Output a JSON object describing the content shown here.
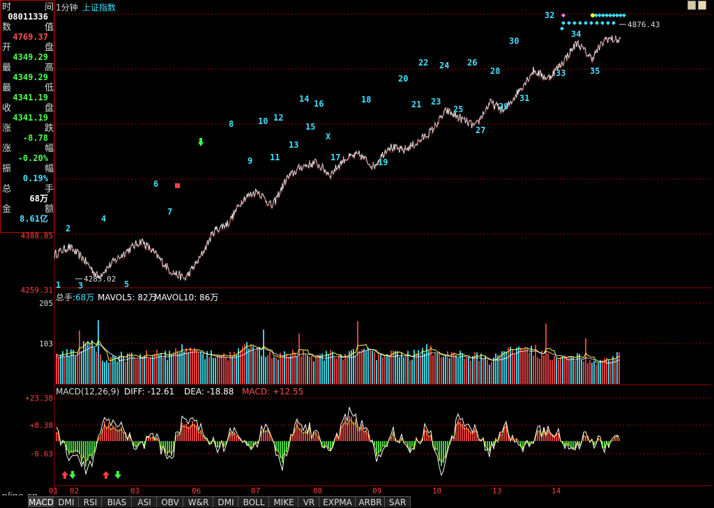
{
  "info_panel": {
    "rows": [
      {
        "label": "时",
        "label2": "间",
        "value": "08011336",
        "color": "#ffffff"
      },
      {
        "label": "数",
        "label2": "值",
        "value": "4769.37",
        "color": "#ff5050"
      },
      {
        "label": "开",
        "label2": "盘",
        "value": "4349.29",
        "color": "#50ff50"
      },
      {
        "label": "最",
        "label2": "高",
        "value": "4349.29",
        "color": "#50ff50"
      },
      {
        "label": "最",
        "label2": "低",
        "value": "4341.19",
        "color": "#50ff50"
      },
      {
        "label": "收",
        "label2": "盘",
        "value": "4341.19",
        "color": "#50ff50"
      },
      {
        "label": "涨",
        "label2": "跌",
        "value": "-8.78",
        "color": "#50ff50"
      },
      {
        "label": "涨",
        "label2": "幅",
        "value": "-0.20%",
        "color": "#50ff50"
      },
      {
        "label": "振",
        "label2": "幅",
        "value": "0.19%",
        "color": "#50e0ff"
      },
      {
        "label": "总",
        "label2": "手",
        "value": "68万",
        "color": "#ffffff"
      },
      {
        "label": "金",
        "label2": "额",
        "value": "8.61亿",
        "color": "#50e0ff"
      }
    ]
  },
  "price_header": {
    "period": "1分钟",
    "name": "上证指数"
  },
  "volume_header": {
    "label": "总手:",
    "value": "68万",
    "mavol5": "MAVOL5: 82万",
    "mavol10": "MAVOL10: 86万"
  },
  "macd_header": {
    "name": "MACD(12,26,9)",
    "diff": "DIFF: -12.61",
    "dea": "DEA: -18.88",
    "macd": "MACD: +12.55"
  },
  "price_axis": {
    "labels": [
      "4388.85",
      "4259.31"
    ],
    "ylim": [
      4259.31,
      4950
    ]
  },
  "volume_axis": {
    "labels": [
      "205",
      "103"
    ]
  },
  "macd_axis": {
    "labels": [
      "+23.38",
      "+8.38",
      "-6.63"
    ]
  },
  "price_markers": {
    "low_label": "4285.02",
    "last_label": "4876.43",
    "x_label": "X",
    "wave_labels": [
      "1",
      "2",
      "3",
      "4",
      "5",
      "6",
      "7",
      "8",
      "9",
      "10",
      "11",
      "12",
      "13",
      "14",
      "15",
      "16",
      "17",
      "18",
      "19",
      "20",
      "21",
      "22",
      "23",
      "24",
      "25",
      "26",
      "27",
      "28",
      "29",
      "30",
      "31",
      "32",
      "33",
      "34",
      "35"
    ]
  },
  "x_axis": {
    "labels": [
      "01",
      "02",
      "03",
      "06",
      "07",
      "08",
      "09",
      "10",
      "13",
      "14"
    ]
  },
  "tabs": [
    "MACD",
    "DMI",
    "RSI",
    "BIAS",
    "ASI",
    "OBV",
    "W&R",
    "DMI",
    "BOLL",
    "MIKE",
    "VR",
    "EXPMA",
    "ARBR",
    "SAR"
  ],
  "watermark": "nline.cn",
  "colors": {
    "up": "#ff4040",
    "down": "#40ff40",
    "cyan": "#40e0ff",
    "grid": "#a00000",
    "text": "#dddddd"
  },
  "chart_data": [
    {
      "type": "line",
      "title": "上证指数 1分钟",
      "description_series": "index price",
      "ylim": [
        4259.31,
        4950
      ],
      "series": [
        {
          "values": [
            4340,
            4360,
            4330,
            4285,
            4320,
            4350,
            4375,
            4340,
            4300,
            4280,
            4330,
            4400,
            4420,
            4480,
            4500,
            4460,
            4530,
            4560,
            4570,
            4540,
            4580,
            4590,
            4560,
            4610,
            4600,
            4620,
            4650,
            4700,
            4680,
            4660,
            4720,
            4700,
            4750,
            4800,
            4780,
            4820,
            4870,
            4830,
            4880,
            4876
          ]
        }
      ]
    },
    {
      "type": "bar",
      "title": "总手",
      "ylim": [
        0,
        205
      ],
      "series": [
        {
          "values": [
            80,
            75,
            110,
            60,
            70,
            65,
            80,
            72,
            95,
            70,
            75,
            70,
            100,
            75,
            70,
            80,
            60,
            75,
            65,
            95,
            70,
            80,
            70,
            90,
            75,
            75,
            70,
            60,
            80,
            95,
            75,
            65,
            70,
            60,
            55,
            75
          ]
        }
      ]
    },
    {
      "type": "bar",
      "title": "MACD(12,26,9)",
      "ylim": [
        -25,
        25
      ],
      "series": [
        {
          "values": [
            5,
            -8,
            -12,
            10,
            8,
            -4,
            3,
            -9,
            12,
            6,
            -5,
            4,
            -6,
            7,
            -10,
            9,
            5,
            -6,
            12,
            8,
            -7,
            4,
            -5,
            6,
            -12,
            10,
            5,
            -4,
            7,
            -6,
            5,
            4,
            -3,
            2,
            -2,
            1
          ]
        }
      ]
    }
  ]
}
